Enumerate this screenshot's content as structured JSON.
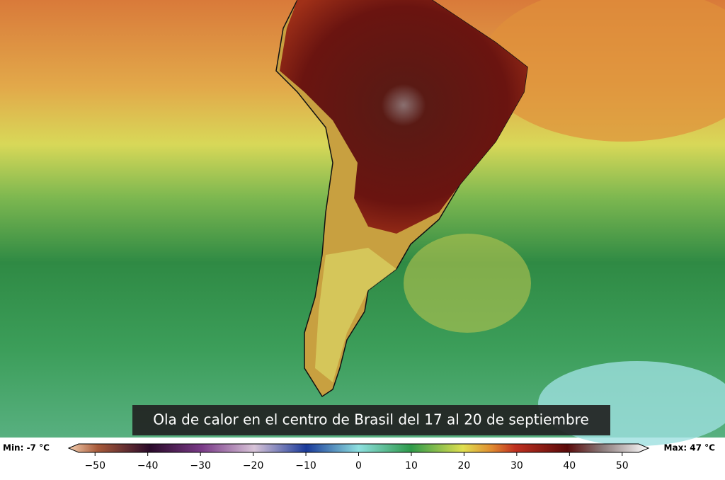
{
  "caption": "Ola de calor en el centro de Brasil del 17 al 20 de septiembre",
  "colorbar": {
    "min_label": "Min: -7 °C",
    "max_label": "Max: 47 °C",
    "range": [
      -55,
      55
    ],
    "ticks": [
      {
        "value": -50,
        "label": "−50"
      },
      {
        "value": -40,
        "label": "−40"
      },
      {
        "value": -30,
        "label": "−30"
      },
      {
        "value": -20,
        "label": "−20"
      },
      {
        "value": -10,
        "label": "−10"
      },
      0,
      10,
      20,
      30,
      40,
      50
    ]
  }
}
